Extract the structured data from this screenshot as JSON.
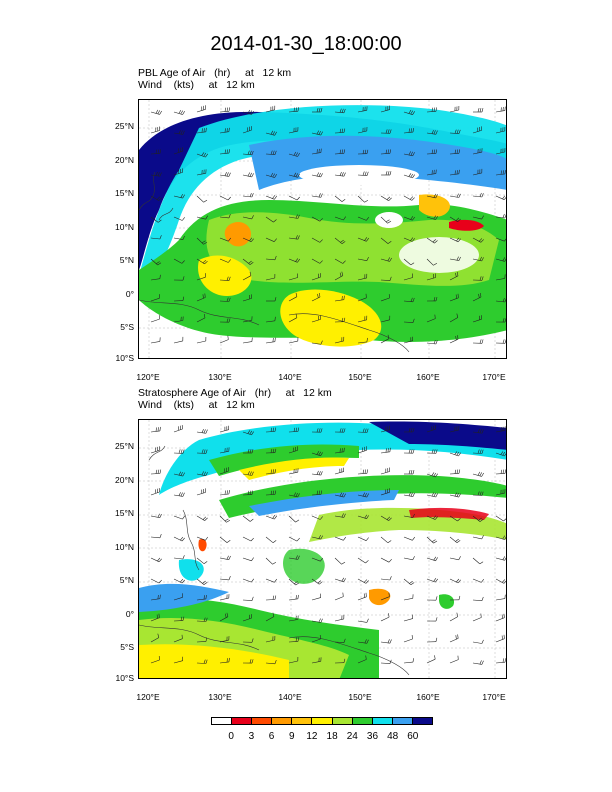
{
  "title": "2014-01-30_18:00:00",
  "panels": [
    {
      "line1": "PBL Age of Air   (hr)     at   12 km",
      "line2": "Wind    (kts)     at   12 km"
    },
    {
      "line1": "Stratosphere Age of Air   (hr)     at   12 km",
      "line2": "Wind    (kts)     at   12 km"
    }
  ],
  "lat_ticks": [
    "25°N",
    "20°N",
    "15°N",
    "10°N",
    "5°N",
    "0°",
    "5°S",
    "10°S"
  ],
  "lon_ticks": [
    "120°E",
    "130°E",
    "140°E",
    "150°E",
    "160°E",
    "170°E"
  ],
  "colorbar": {
    "labels": [
      "0",
      "3",
      "6",
      "9",
      "12",
      "18",
      "24",
      "36",
      "48",
      "60"
    ],
    "colors": [
      "#ffffff",
      "#e8001a",
      "#ff4a00",
      "#ff9a00",
      "#ffc20a",
      "#fff000",
      "#a8e632",
      "#2ecc2e",
      "#10e0ec",
      "#3aa0f0",
      "#0a0a8a"
    ]
  }
}
